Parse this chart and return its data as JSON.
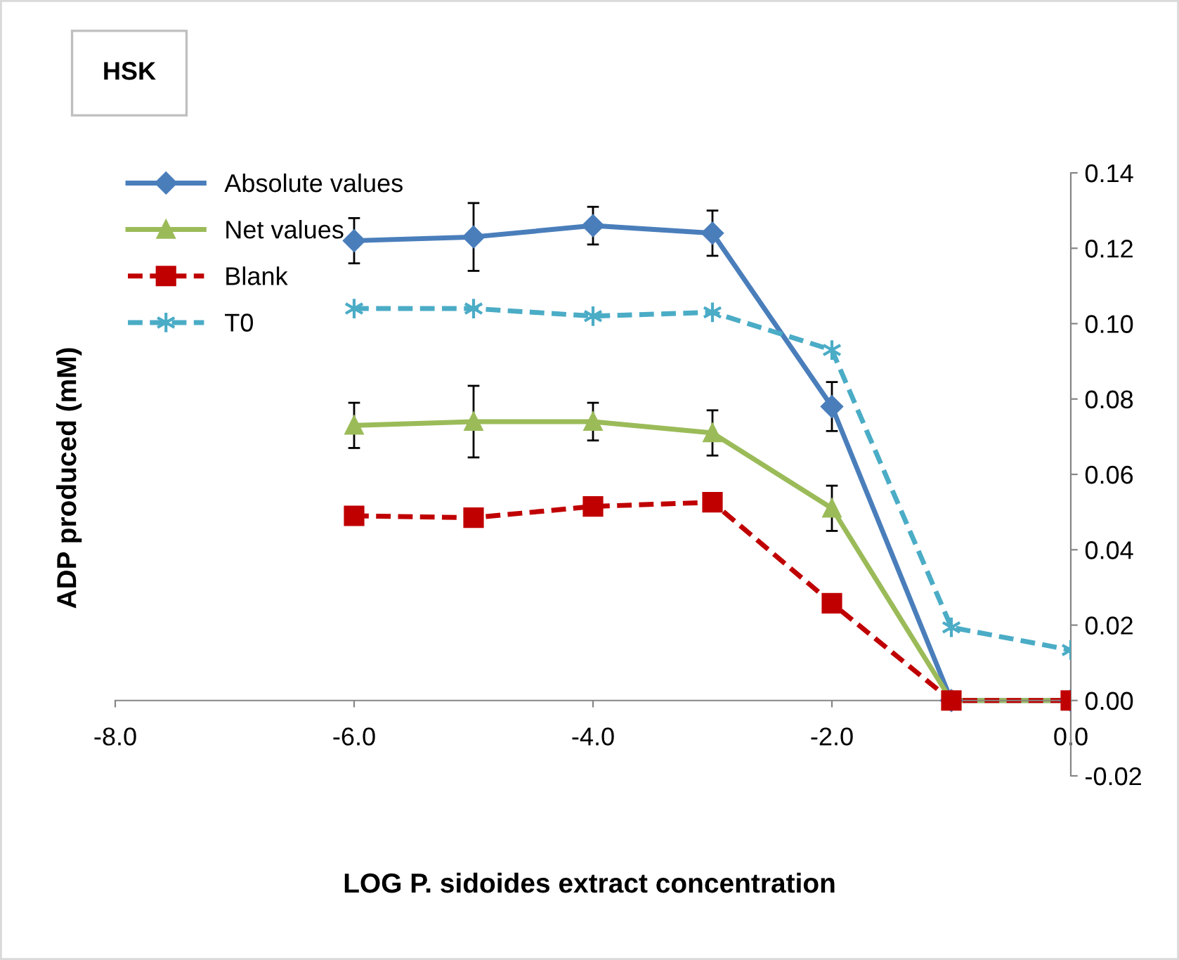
{
  "chart_data": {
    "type": "line",
    "annotations": [
      "HSK"
    ],
    "xlabel": "LOG P. sidoides extract concentration",
    "ylabel": "ADP produced (mM)",
    "x": [
      -6,
      -5,
      -4,
      -3,
      -2,
      -1,
      0
    ],
    "series": [
      {
        "name": "Absolute values",
        "color": "#4a7ebb",
        "marker": "diamond",
        "line_style": "solid",
        "values": [
          0.122,
          0.123,
          0.126,
          0.124,
          0.078,
          0,
          0
        ],
        "errors": [
          0.006,
          0.009,
          0.005,
          0.006,
          0.0065,
          null,
          null
        ]
      },
      {
        "name": "Net values",
        "color": "#9bbb59",
        "marker": "triangle",
        "line_style": "solid",
        "values": [
          0.073,
          0.074,
          0.074,
          0.071,
          0.051,
          0,
          0
        ],
        "errors": [
          0.006,
          0.0095,
          0.005,
          0.006,
          0.006,
          null,
          null
        ]
      },
      {
        "name": "Blank",
        "color": "#c00000",
        "marker": "square",
        "line_style": "dashed",
        "values": [
          0.049,
          0.0485,
          0.0515,
          0.0526,
          0.0258,
          0,
          0
        ]
      },
      {
        "name": "T0",
        "color": "#4bacc6",
        "marker": "cross",
        "line_style": "dashed",
        "values": [
          0.104,
          0.104,
          0.102,
          0.103,
          0.093,
          0.0194,
          0.0134
        ]
      }
    ],
    "xlim": [
      -8,
      0
    ],
    "xticks": [
      {
        "value": -8,
        "label": "-8.0"
      },
      {
        "value": -6,
        "label": "-6.0"
      },
      {
        "value": -4,
        "label": "-4.0"
      },
      {
        "value": -2,
        "label": "-2.0"
      },
      {
        "value": 0,
        "label": "0.0"
      }
    ],
    "ylim": [
      -0.02,
      0.14
    ],
    "yticks": [
      {
        "value": -0.02,
        "label": "-0.02"
      },
      {
        "value": 0,
        "label": "0.00"
      },
      {
        "value": 0.02,
        "label": "0.02"
      },
      {
        "value": 0.04,
        "label": "0.04"
      },
      {
        "value": 0.06,
        "label": "0.06"
      },
      {
        "value": 0.08,
        "label": "0.08"
      },
      {
        "value": 0.1,
        "label": "0.10"
      },
      {
        "value": 0.12,
        "label": "0.12"
      },
      {
        "value": 0.14,
        "label": "0.14"
      }
    ],
    "grid": false,
    "legend": "top left"
  }
}
